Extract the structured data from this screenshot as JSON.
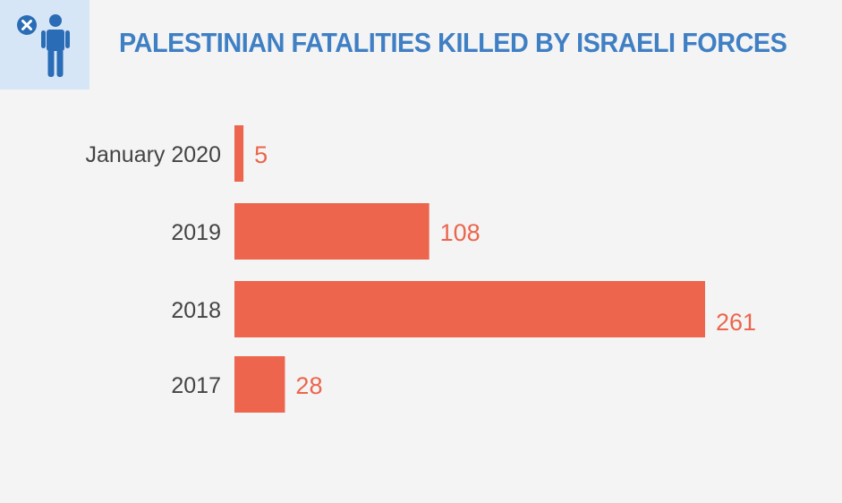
{
  "title": "PALESTINIAN FATALITIES KILLED BY ISRAELI FORCES",
  "icon": "person-cancel-icon",
  "colors": {
    "title": "#3f7fc4",
    "bar": "#ec654c",
    "value_label": "#ec654c",
    "category_label": "#444444",
    "icon_box": "#d6e6f7",
    "icon": "#2a6cb5",
    "background": "#f4f4f4"
  },
  "chart_data": {
    "type": "bar",
    "orientation": "horizontal",
    "title": "PALESTINIAN FATALITIES KILLED BY ISRAELI FORCES",
    "categories": [
      "January 2020",
      "2019",
      "2018",
      "2017"
    ],
    "values": [
      5,
      108,
      261,
      28
    ],
    "data_labels": [
      "5",
      "108",
      "261",
      "28"
    ],
    "xlabel": "",
    "ylabel": "",
    "grid": false,
    "legend": "none"
  }
}
